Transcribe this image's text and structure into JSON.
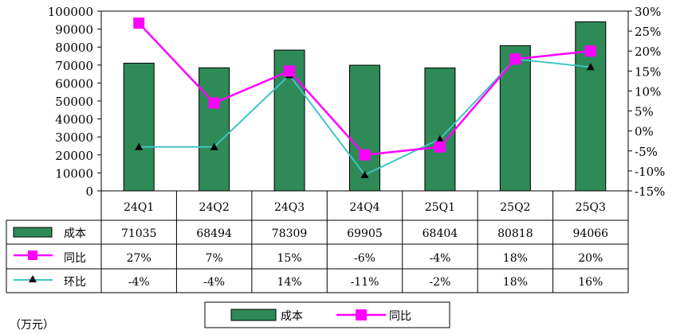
{
  "unit_label": "（万元）",
  "colors": {
    "bar": "#2e8b57",
    "yoy": "#ff00ff",
    "qoq": "#40c4c4",
    "qoq_marker": "#000000"
  },
  "chart_data": {
    "type": "bar",
    "categories": [
      "24Q1",
      "24Q2",
      "24Q3",
      "24Q4",
      "25Q1",
      "25Q2",
      "25Q3"
    ],
    "ylim": [
      0,
      100000
    ],
    "y_ticks": [
      0,
      10000,
      20000,
      30000,
      40000,
      50000,
      60000,
      70000,
      80000,
      90000,
      100000
    ],
    "y2lim": [
      -15,
      30
    ],
    "y2_ticks": [
      "-15%",
      "-10%",
      "-5%",
      "0%",
      "5%",
      "10%",
      "15%",
      "20%",
      "25%",
      "30%"
    ],
    "grid": false,
    "series": [
      {
        "name": "成本",
        "type": "bar",
        "axis": "left",
        "values": [
          71035,
          68494,
          78309,
          69905,
          68404,
          80818,
          94066
        ],
        "labels": [
          "71035",
          "68494",
          "78309",
          "69905",
          "68404",
          "80818",
          "94066"
        ]
      },
      {
        "name": "同比",
        "type": "line",
        "axis": "right",
        "marker": "square",
        "values": [
          27,
          7,
          15,
          -6,
          -4,
          18,
          20
        ],
        "labels": [
          "27%",
          "7%",
          "15%",
          "-6%",
          "-4%",
          "18%",
          "20%"
        ]
      },
      {
        "name": "环比",
        "type": "line",
        "axis": "right",
        "marker": "triangle",
        "values": [
          -4,
          -4,
          14,
          -11,
          -2,
          18,
          16
        ],
        "labels": [
          "-4%",
          "-4%",
          "14%",
          "-11%",
          "-2%",
          "18%",
          "16%"
        ]
      }
    ],
    "legend": {
      "position": "bottom",
      "entries": [
        "成本",
        "同比"
      ]
    }
  }
}
